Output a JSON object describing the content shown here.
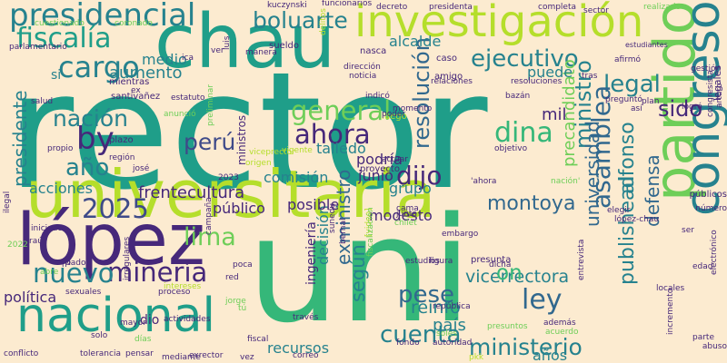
{
  "background": "#fcebd0",
  "palette": {
    "purple": "#46287a",
    "indigo": "#3e4a89",
    "blue": "#31688e",
    "teal": "#26828e",
    "seagreen": "#1f9e89",
    "green": "#35b779",
    "lime": "#6ece58",
    "yellow": "#b5de2b"
  },
  "words": [
    "rector",
    "uni",
    "universitaria",
    "chau",
    "investigación",
    "lópez",
    "partido",
    "nacional",
    "congreso",
    "presidencial",
    "fiscalía",
    "boluarte",
    "ejecutivo",
    "cargo",
    "legal",
    "nación",
    "general",
    "perú",
    "dina",
    "by",
    "ahora",
    "sido",
    "presidente",
    "año",
    "2025",
    "lima",
    "minería",
    "nuevo",
    "dijo",
    "asamblea",
    "alfonso",
    "resolución",
    "ministro",
    "universidad",
    "publishead",
    "ley",
    "según",
    "pese",
    "cuenta",
    "ministerio",
    "montoya",
    "exministro",
    "defensa",
    "precandidato",
    "vicerrectora",
    "on",
    "reinfo",
    "decisión",
    "aumento",
    "medio",
    "alcalde",
    "puede",
    "mil",
    "talledo",
    "comisión",
    "frentecultura",
    "acciones",
    "público",
    "posible",
    "modesto",
    "junio",
    "grupo",
    "podría",
    "país",
    "política",
    "recursos",
    "años",
    "ingeniería",
    "mientras",
    "santivañez",
    "ministros",
    "región",
    "josé",
    "estudiantes",
    "gestión",
    "legales",
    "públicos",
    "número",
    "elegir",
    "plazo",
    "estatuto",
    "luego",
    "proyecto",
    "caso",
    "amigo",
    "nasca",
    "sueldo",
    "kuczynski",
    "funcionarios",
    "decreto",
    "presidenta",
    "completa",
    "sector",
    "realizado",
    "cuestionado",
    "coronado",
    "parlamentario",
    "relaciones",
    "dirección",
    "noticia",
    "afirmó",
    "tras",
    "resoluciones",
    "preguntó",
    "indicó",
    "bazán",
    "momento",
    "objetivo",
    "actuar",
    "embargo",
    "junta",
    "chilet",
    "sunedu",
    "bernal",
    "figura",
    "presunta",
    "dicha",
    "república",
    "estudios",
    "además",
    "acuerdo",
    "presuntos",
    "entrevista",
    "locales",
    "edad",
    "parte",
    "abuso",
    "electrónico",
    "congresista",
    "arturo",
    "plan",
    "logró",
    "así",
    "ilegal",
    "iniciado",
    "raúl",
    "dado",
    "campaña",
    "irregulares",
    "intereses",
    "sexuales",
    "actividades",
    "proceso",
    "jorge",
    "red",
    "poca",
    "través",
    "fiscal",
    "mediante",
    "exrector",
    "vez",
    "correo",
    "fondo",
    "soles",
    "conflicto",
    "tolerancia",
    "pensar",
    "solo",
    "mayor",
    "incremento",
    "manera",
    "ver",
    "luis",
    "delitos",
    "poder",
    "autoridad",
    "vigente",
    "origen",
    "anunció",
    "salud",
    "preliminar",
    "ica",
    "ex",
    "si",
    "propio",
    "2022",
    "abre",
    "dio",
    "días",
    "tú",
    "lópez-chau",
    "ser",
    "cama",
    "viceprector",
    "nación'",
    "'ahora",
    "2023",
    "nº",
    "[video]",
    "fiscalización",
    "pkk"
  ]
}
